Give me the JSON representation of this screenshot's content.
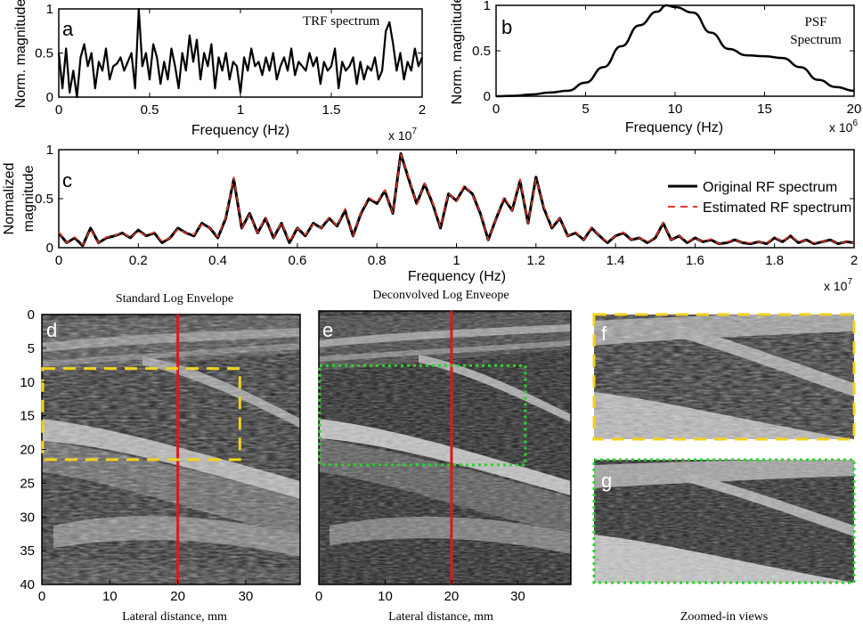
{
  "colors": {
    "trace": "#000000",
    "estimate": "#e8352a",
    "cursor": "#e01818",
    "roi_yellow": "#f3d21a",
    "roi_green": "#2bd12b"
  },
  "chart_data": [
    {
      "id": "a",
      "type": "line",
      "panel_label": "a",
      "title": "TRF spectrum",
      "xlabel": "Frequency (Hz)",
      "ylabel": "Norm. magnitude",
      "xlim": [
        0,
        2
      ],
      "ylim": [
        0,
        1
      ],
      "x_ticks": [
        "0",
        "0.5",
        "1",
        "1.5",
        "2"
      ],
      "y_ticks": [
        "0",
        "0.5",
        "1"
      ],
      "x_multiplier": "x 10",
      "x_exponent": "7",
      "x": [
        0.0,
        0.02,
        0.04,
        0.06,
        0.08,
        0.1,
        0.12,
        0.14,
        0.16,
        0.18,
        0.2,
        0.22,
        0.24,
        0.26,
        0.28,
        0.3,
        0.32,
        0.34,
        0.36,
        0.38,
        0.4,
        0.42,
        0.44,
        0.46,
        0.48,
        0.5,
        0.52,
        0.54,
        0.56,
        0.58,
        0.6,
        0.62,
        0.64,
        0.66,
        0.68,
        0.7,
        0.72,
        0.74,
        0.76,
        0.78,
        0.8,
        0.82,
        0.84,
        0.86,
        0.88,
        0.9,
        0.92,
        0.94,
        0.96,
        0.98,
        1.0,
        1.02,
        1.04,
        1.06,
        1.08,
        1.1,
        1.12,
        1.14,
        1.16,
        1.18,
        1.2,
        1.22,
        1.24,
        1.26,
        1.28,
        1.3,
        1.32,
        1.34,
        1.36,
        1.38,
        1.4,
        1.42,
        1.44,
        1.46,
        1.48,
        1.5,
        1.52,
        1.54,
        1.56,
        1.58,
        1.6,
        1.62,
        1.64,
        1.66,
        1.68,
        1.7,
        1.72,
        1.74,
        1.76,
        1.78,
        1.8,
        1.82,
        1.84,
        1.86,
        1.88,
        1.9,
        1.92,
        1.94,
        1.96,
        1.98,
        2.0
      ],
      "y": [
        0.5,
        0.1,
        0.55,
        0.05,
        0.3,
        0.0,
        0.45,
        0.6,
        0.35,
        0.5,
        0.1,
        0.4,
        0.3,
        0.55,
        0.2,
        0.35,
        0.38,
        0.45,
        0.3,
        0.4,
        0.5,
        0.1,
        1.0,
        0.35,
        0.5,
        0.2,
        0.6,
        0.45,
        0.15,
        0.4,
        0.2,
        0.55,
        0.35,
        0.1,
        0.5,
        0.3,
        0.7,
        0.4,
        0.65,
        0.2,
        0.5,
        0.35,
        0.6,
        0.1,
        0.45,
        0.3,
        0.5,
        0.2,
        0.4,
        0.35,
        0.05,
        0.45,
        0.3,
        0.55,
        0.35,
        0.4,
        0.25,
        0.45,
        0.3,
        0.5,
        0.2,
        0.35,
        0.45,
        0.3,
        0.55,
        0.25,
        0.4,
        0.35,
        0.3,
        0.5,
        0.35,
        0.45,
        0.15,
        0.4,
        0.3,
        0.35,
        0.55,
        0.1,
        0.4,
        0.3,
        0.35,
        0.45,
        0.15,
        0.4,
        0.2,
        0.35,
        0.3,
        0.45,
        0.2,
        0.3,
        0.75,
        0.85,
        0.6,
        0.3,
        0.5,
        0.2,
        0.4,
        0.3,
        0.55,
        0.35,
        0.45
      ]
    },
    {
      "id": "b",
      "type": "line",
      "panel_label": "b",
      "title_lines": [
        "PSF",
        "Spectrum"
      ],
      "xlabel": "Frequency (Hz)",
      "ylabel": "Norm. magnitude",
      "xlim": [
        0,
        20
      ],
      "ylim": [
        0,
        1
      ],
      "x_ticks": [
        "0",
        "5",
        "10",
        "15",
        "20"
      ],
      "y_ticks": [
        "0",
        "0.5",
        "1"
      ],
      "x_multiplier": "x 10",
      "x_exponent": "6",
      "x": [
        0,
        1,
        2,
        3,
        4,
        5,
        6,
        7,
        8,
        9,
        9.5,
        10,
        11,
        12,
        13,
        14,
        15,
        16,
        17,
        18,
        19,
        20
      ],
      "y": [
        0,
        0.005,
        0.02,
        0.04,
        0.06,
        0.15,
        0.32,
        0.55,
        0.78,
        0.93,
        1.0,
        0.98,
        0.92,
        0.7,
        0.52,
        0.45,
        0.44,
        0.42,
        0.32,
        0.18,
        0.1,
        0.06
      ]
    },
    {
      "id": "c",
      "type": "line",
      "panel_label": "c",
      "xlabel": "Frequency (Hz)",
      "ylabel_lines": [
        "Normalized",
        "magnitude"
      ],
      "xlim": [
        0,
        2
      ],
      "ylim": [
        0,
        1
      ],
      "x_ticks": [
        "0",
        "0.2",
        "0.4",
        "0.6",
        "0.8",
        "1",
        "1.2",
        "1.4",
        "1.6",
        "1.8",
        "2"
      ],
      "y_ticks": [
        "0",
        "0.5",
        "1"
      ],
      "x_multiplier": "x 10",
      "x_exponent": "7",
      "top_multiplier": "x 10",
      "top_exponent": "7",
      "legend_position": "top-right",
      "x": [
        0.0,
        0.02,
        0.04,
        0.06,
        0.08,
        0.1,
        0.12,
        0.14,
        0.16,
        0.18,
        0.2,
        0.22,
        0.24,
        0.26,
        0.28,
        0.3,
        0.32,
        0.34,
        0.36,
        0.38,
        0.4,
        0.42,
        0.44,
        0.46,
        0.48,
        0.5,
        0.52,
        0.54,
        0.56,
        0.58,
        0.6,
        0.62,
        0.64,
        0.66,
        0.68,
        0.7,
        0.72,
        0.74,
        0.76,
        0.78,
        0.8,
        0.82,
        0.84,
        0.86,
        0.88,
        0.9,
        0.92,
        0.94,
        0.96,
        0.98,
        1.0,
        1.02,
        1.04,
        1.06,
        1.08,
        1.1,
        1.12,
        1.14,
        1.16,
        1.18,
        1.2,
        1.22,
        1.24,
        1.26,
        1.28,
        1.3,
        1.32,
        1.34,
        1.36,
        1.38,
        1.4,
        1.42,
        1.44,
        1.46,
        1.48,
        1.5,
        1.52,
        1.54,
        1.56,
        1.58,
        1.6,
        1.62,
        1.64,
        1.66,
        1.68,
        1.7,
        1.72,
        1.74,
        1.76,
        1.78,
        1.8,
        1.82,
        1.84,
        1.86,
        1.88,
        1.9,
        1.92,
        1.94,
        1.96,
        1.98,
        2.0
      ],
      "series": [
        {
          "name": "Original RF spectrum",
          "color": "#000000",
          "values": [
            0.15,
            0.05,
            0.1,
            0.02,
            0.2,
            0.05,
            0.1,
            0.12,
            0.15,
            0.1,
            0.18,
            0.12,
            0.15,
            0.05,
            0.1,
            0.2,
            0.15,
            0.12,
            0.25,
            0.2,
            0.1,
            0.3,
            0.7,
            0.2,
            0.35,
            0.15,
            0.3,
            0.1,
            0.25,
            0.05,
            0.2,
            0.12,
            0.25,
            0.2,
            0.3,
            0.22,
            0.38,
            0.12,
            0.35,
            0.5,
            0.45,
            0.58,
            0.35,
            0.96,
            0.7,
            0.45,
            0.65,
            0.45,
            0.2,
            0.55,
            0.48,
            0.62,
            0.55,
            0.35,
            0.08,
            0.3,
            0.5,
            0.38,
            0.68,
            0.25,
            0.72,
            0.4,
            0.2,
            0.3,
            0.12,
            0.15,
            0.08,
            0.2,
            0.12,
            0.05,
            0.12,
            0.15,
            0.08,
            0.1,
            0.05,
            0.1,
            0.25,
            0.08,
            0.12,
            0.05,
            0.1,
            0.06,
            0.08,
            0.04,
            0.05,
            0.08,
            0.05,
            0.04,
            0.06,
            0.04,
            0.1,
            0.06,
            0.12,
            0.05,
            0.08,
            0.04,
            0.06,
            0.08,
            0.04,
            0.06,
            0.05
          ]
        },
        {
          "name": "Estimated RF spectrum",
          "color": "#e8352a",
          "values": [
            0.16,
            0.05,
            0.11,
            0.03,
            0.19,
            0.05,
            0.11,
            0.12,
            0.16,
            0.1,
            0.17,
            0.12,
            0.16,
            0.06,
            0.1,
            0.19,
            0.15,
            0.13,
            0.24,
            0.2,
            0.11,
            0.31,
            0.72,
            0.2,
            0.34,
            0.15,
            0.31,
            0.1,
            0.26,
            0.06,
            0.2,
            0.13,
            0.24,
            0.2,
            0.31,
            0.22,
            0.4,
            0.12,
            0.36,
            0.51,
            0.46,
            0.59,
            0.35,
            0.95,
            0.72,
            0.44,
            0.66,
            0.46,
            0.21,
            0.56,
            0.47,
            0.64,
            0.54,
            0.36,
            0.08,
            0.3,
            0.52,
            0.38,
            0.7,
            0.25,
            0.7,
            0.42,
            0.21,
            0.3,
            0.12,
            0.16,
            0.08,
            0.21,
            0.12,
            0.06,
            0.12,
            0.16,
            0.08,
            0.1,
            0.06,
            0.1,
            0.26,
            0.08,
            0.12,
            0.06,
            0.1,
            0.06,
            0.09,
            0.04,
            0.06,
            0.08,
            0.05,
            0.05,
            0.06,
            0.04,
            0.11,
            0.06,
            0.13,
            0.05,
            0.08,
            0.05,
            0.06,
            0.08,
            0.04,
            0.06,
            0.05
          ]
        }
      ]
    }
  ],
  "images": {
    "d": {
      "panel_label": "d",
      "title": "Standard Log Envelope",
      "xlabel": "Lateral distance, mm",
      "x_ticks": [
        "0",
        "10",
        "20",
        "30"
      ],
      "y_ticks": [
        "0",
        "5",
        "10",
        "15",
        "20",
        "25",
        "30",
        "35",
        "40"
      ],
      "xlim": [
        0,
        38
      ],
      "ylim": [
        0,
        40
      ],
      "cursor_x": 20,
      "roi": {
        "x": [
          0,
          29
        ],
        "y": [
          8,
          21.5
        ]
      }
    },
    "e": {
      "panel_label": "e",
      "title": "Deconvolved Log Enveope",
      "xlabel": "Lateral distance, mm",
      "x_ticks": [
        "0",
        "10",
        "20",
        "30"
      ],
      "xlim": [
        0,
        38
      ],
      "ylim": [
        0,
        40
      ],
      "cursor_x": 20,
      "roi": {
        "x": [
          0,
          31
        ],
        "y": [
          8,
          22.5
        ]
      }
    },
    "f": {
      "panel_label": "f"
    },
    "g": {
      "panel_label": "g"
    },
    "zoom_caption": "Zoomed-in views"
  }
}
